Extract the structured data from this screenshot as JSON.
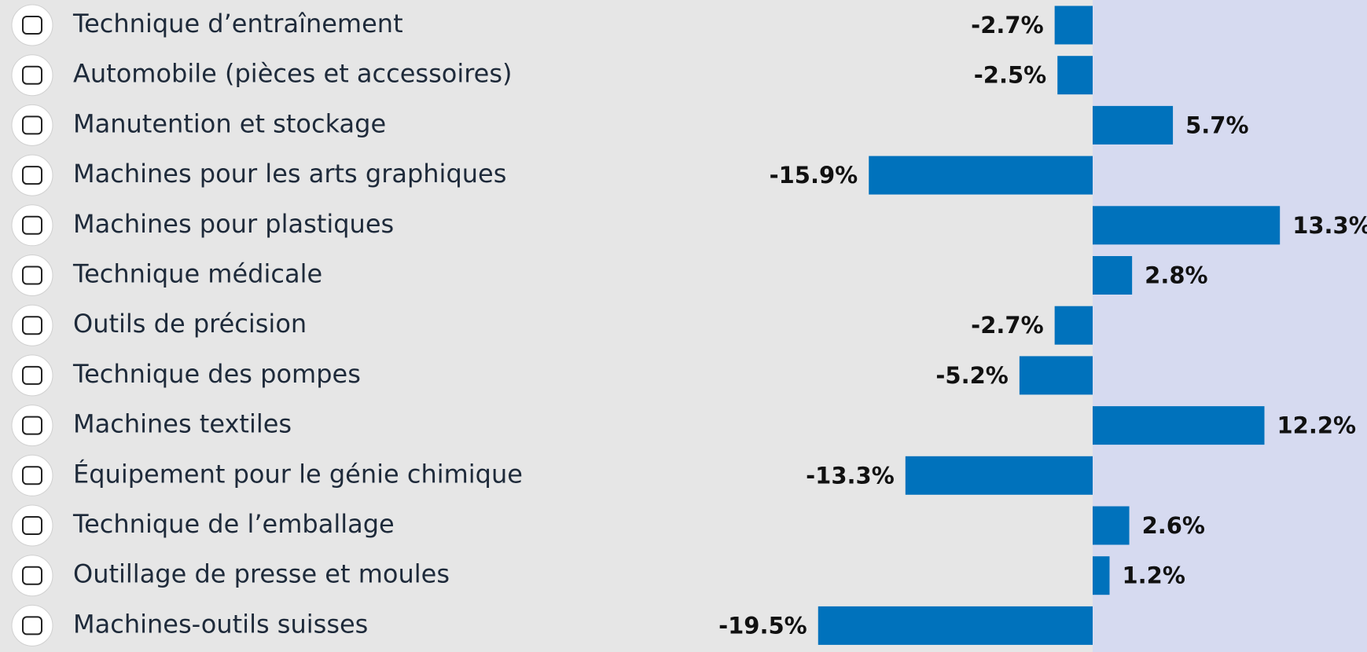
{
  "chart_data": {
    "type": "bar",
    "orientation": "horizontal",
    "color": "#0072bc",
    "categories": [
      "Technique d’entraînement",
      "Automobile (pièces et accessoires)",
      "Manutention et stockage",
      "Machines pour les arts graphiques",
      "Machines pour plastiques",
      "Technique médicale",
      "Outils de précision",
      "Technique des pompes",
      "Machines textiles",
      "Équipement pour le génie chimique",
      "Technique de l’emballage",
      "Outillage de presse et moules",
      "Machines-outils suisses"
    ],
    "values": [
      -2.7,
      -2.5,
      5.7,
      -15.9,
      13.3,
      2.8,
      -2.7,
      -5.2,
      12.2,
      -13.3,
      2.6,
      1.2,
      -19.5
    ],
    "value_labels": [
      "-2.7%",
      "-2.5%",
      "5.7%",
      "-15.9%",
      "13.3%",
      "2.8%",
      "-2.7%",
      "-5.2%",
      "12.2%",
      "-13.3%",
      "2.6%",
      "1.2%",
      "-19.5%"
    ]
  }
}
